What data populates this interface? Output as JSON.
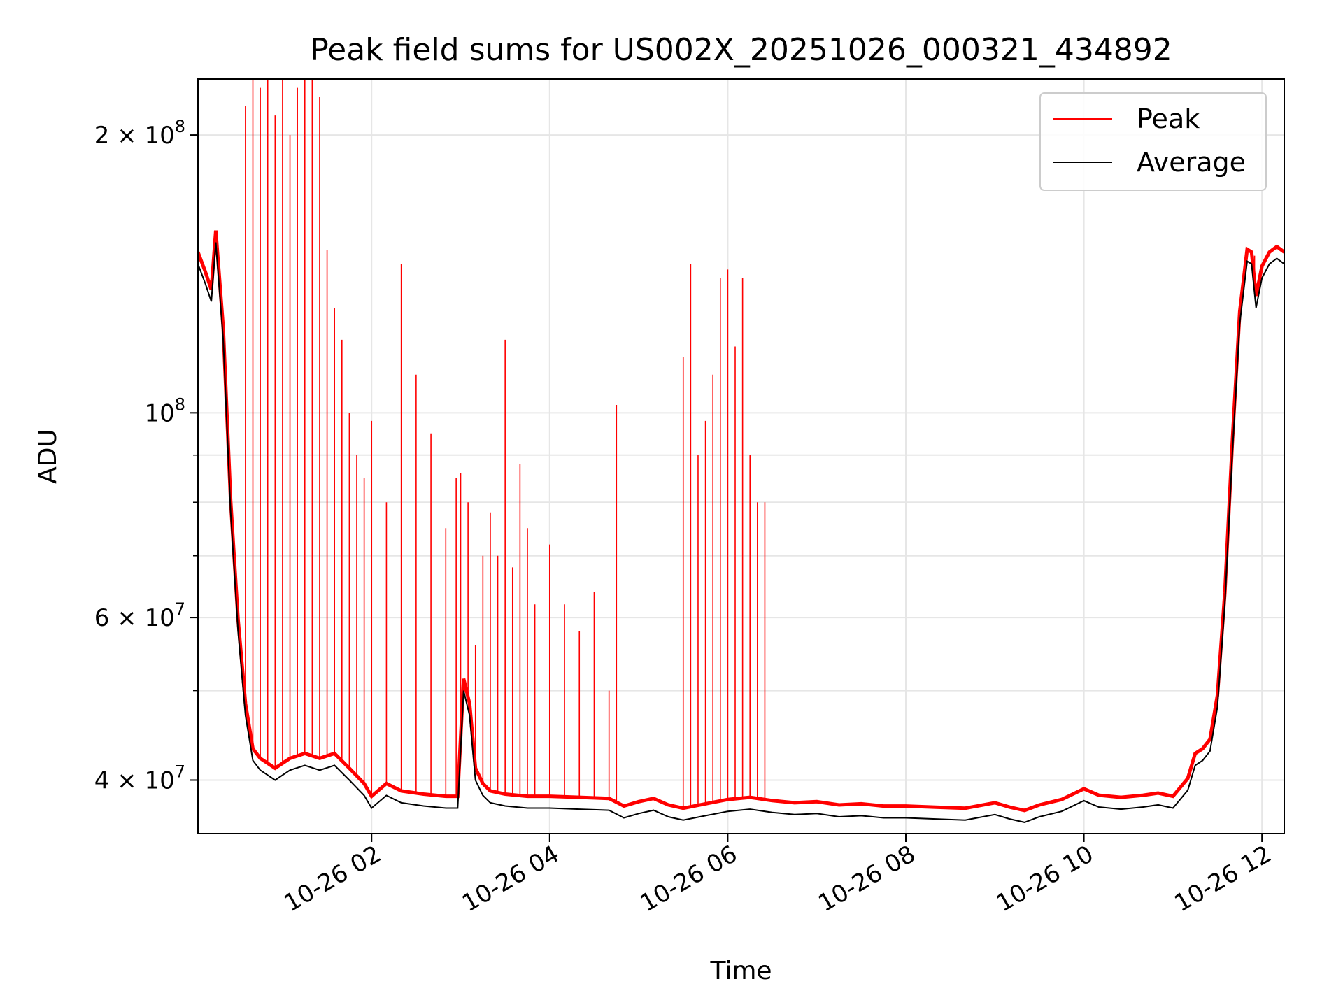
{
  "chart_data": {
    "type": "line",
    "title": "Peak field sums for US002X_20251026_000321_434892",
    "xlabel": "Time",
    "ylabel": "ADU",
    "yscale": "log",
    "xlim": [
      "2025-10-26 00:03",
      "2025-10-26 12:15"
    ],
    "ylim": [
      35000000,
      230000000
    ],
    "x_ticks": [
      {
        "value": "2025-10-26 02:00",
        "label": "10-26 02"
      },
      {
        "value": "2025-10-26 04:00",
        "label": "10-26 04"
      },
      {
        "value": "2025-10-26 06:00",
        "label": "10-26 06"
      },
      {
        "value": "2025-10-26 08:00",
        "label": "10-26 08"
      },
      {
        "value": "2025-10-26 10:00",
        "label": "10-26 10"
      },
      {
        "value": "2025-10-26 12:00",
        "label": "10-26 12"
      }
    ],
    "y_ticks": [
      {
        "value": 40000000,
        "base": "4 × 10",
        "exp": "7"
      },
      {
        "value": 60000000,
        "base": "6 × 10",
        "exp": "7"
      },
      {
        "value": 100000000,
        "base": "10",
        "exp": "8"
      },
      {
        "value": 200000000,
        "base": "2 × 10",
        "exp": "8"
      }
    ],
    "grid": true,
    "legend_position": "top-right",
    "series": [
      {
        "name": "Peak",
        "color": "#ff0000",
        "x": [
          "2025-10-26 00:03",
          "2025-10-26 00:10",
          "2025-10-26 00:15",
          "2025-10-26 00:20",
          "2025-10-26 00:25",
          "2025-10-26 00:30",
          "2025-10-26 00:35",
          "2025-10-26 00:40",
          "2025-10-26 00:45",
          "2025-10-26 00:50",
          "2025-10-26 00:55",
          "2025-10-26 01:00",
          "2025-10-26 01:05",
          "2025-10-26 01:10",
          "2025-10-26 01:15",
          "2025-10-26 01:20",
          "2025-10-26 01:25",
          "2025-10-26 01:30",
          "2025-10-26 01:35",
          "2025-10-26 01:40",
          "2025-10-26 01:45",
          "2025-10-26 01:50",
          "2025-10-26 01:55",
          "2025-10-26 02:00",
          "2025-10-26 02:10",
          "2025-10-26 02:20",
          "2025-10-26 02:30",
          "2025-10-26 02:40",
          "2025-10-26 02:50",
          "2025-10-26 02:57",
          "2025-10-26 03:00",
          "2025-10-26 03:05",
          "2025-10-26 03:10",
          "2025-10-26 03:15",
          "2025-10-26 03:20",
          "2025-10-26 03:25",
          "2025-10-26 03:30",
          "2025-10-26 03:35",
          "2025-10-26 03:40",
          "2025-10-26 03:45",
          "2025-10-26 03:50",
          "2025-10-26 04:00",
          "2025-10-26 04:10",
          "2025-10-26 04:20",
          "2025-10-26 04:30",
          "2025-10-26 04:40",
          "2025-10-26 04:45",
          "2025-10-26 04:50",
          "2025-10-26 05:00",
          "2025-10-26 05:10",
          "2025-10-26 05:20",
          "2025-10-26 05:30",
          "2025-10-26 05:35",
          "2025-10-26 05:40",
          "2025-10-26 05:45",
          "2025-10-26 05:50",
          "2025-10-26 05:55",
          "2025-10-26 06:00",
          "2025-10-26 06:05",
          "2025-10-26 06:10",
          "2025-10-26 06:15",
          "2025-10-26 06:20",
          "2025-10-26 06:25",
          "2025-10-26 06:30",
          "2025-10-26 06:40",
          "2025-10-26 07:00",
          "2025-10-26 07:20",
          "2025-10-26 07:40",
          "2025-10-26 08:00",
          "2025-10-26 08:20",
          "2025-10-26 08:40",
          "2025-10-26 09:00",
          "2025-10-26 09:10",
          "2025-10-26 09:20",
          "2025-10-26 09:40",
          "2025-10-26 10:00",
          "2025-10-26 10:10",
          "2025-10-26 10:20",
          "2025-10-26 10:40",
          "2025-10-26 10:50",
          "2025-10-26 11:00",
          "2025-10-26 11:10",
          "2025-10-26 11:20",
          "2025-10-26 11:30",
          "2025-10-26 11:35",
          "2025-10-26 11:40",
          "2025-10-26 11:45",
          "2025-10-26 11:50",
          "2025-10-26 11:55",
          "2025-10-26 12:00",
          "2025-10-26 12:05",
          "2025-10-26 12:10",
          "2025-10-26 12:15"
        ],
        "values": [
          145000000,
          140000000,
          158000000,
          120000000,
          82000000,
          60000000,
          215000000,
          230000000,
          225000000,
          230000000,
          210000000,
          230000000,
          200000000,
          225000000,
          230000000,
          230000000,
          220000000,
          150000000,
          130000000,
          120000000,
          100000000,
          90000000,
          85000000,
          98000000,
          80000000,
          145000000,
          110000000,
          95000000,
          75000000,
          85000000,
          86000000,
          80000000,
          56000000,
          70000000,
          78000000,
          70000000,
          120000000,
          68000000,
          88000000,
          75000000,
          62000000,
          72000000,
          62000000,
          58000000,
          64000000,
          50000000,
          102000000,
          38000000,
          37500000,
          37000000,
          36500000,
          115000000,
          145000000,
          90000000,
          98000000,
          110000000,
          140000000,
          143000000,
          118000000,
          140000000,
          90000000,
          80000000,
          80000000,
          38500000,
          38000000,
          37500000,
          37800000,
          37200000,
          37000000,
          36800000,
          37000000,
          37500000,
          36500000,
          37200000,
          38200000,
          39000000,
          38500000,
          38200000,
          38300000,
          38500000,
          38000000,
          41000000,
          44000000,
          45000000,
          52000000,
          70000000,
          95000000,
          130000000,
          148000000,
          136000000,
          140000000,
          148000000,
          146000000
        ]
      },
      {
        "name": "Average",
        "color": "#000000",
        "x": [
          "2025-10-26 00:03",
          "2025-10-26 00:08",
          "2025-10-26 00:12",
          "2025-10-26 00:15",
          "2025-10-26 00:20",
          "2025-10-26 00:25",
          "2025-10-26 00:30",
          "2025-10-26 00:35",
          "2025-10-26 00:40",
          "2025-10-26 00:45",
          "2025-10-26 00:55",
          "2025-10-26 01:05",
          "2025-10-26 01:15",
          "2025-10-26 01:25",
          "2025-10-26 01:35",
          "2025-10-26 01:45",
          "2025-10-26 01:55",
          "2025-10-26 02:00",
          "2025-10-26 02:10",
          "2025-10-26 02:20",
          "2025-10-26 02:35",
          "2025-10-26 02:50",
          "2025-10-26 02:58",
          "2025-10-26 03:02",
          "2025-10-26 03:06",
          "2025-10-26 03:10",
          "2025-10-26 03:15",
          "2025-10-26 03:20",
          "2025-10-26 03:30",
          "2025-10-26 03:45",
          "2025-10-26 04:00",
          "2025-10-26 04:20",
          "2025-10-26 04:40",
          "2025-10-26 04:50",
          "2025-10-26 05:00",
          "2025-10-26 05:10",
          "2025-10-26 05:20",
          "2025-10-26 05:30",
          "2025-10-26 05:45",
          "2025-10-26 06:00",
          "2025-10-26 06:15",
          "2025-10-26 06:30",
          "2025-10-26 06:45",
          "2025-10-26 07:00",
          "2025-10-26 07:15",
          "2025-10-26 07:30",
          "2025-10-26 07:45",
          "2025-10-26 08:00",
          "2025-10-26 08:20",
          "2025-10-26 08:40",
          "2025-10-26 09:00",
          "2025-10-26 09:10",
          "2025-10-26 09:20",
          "2025-10-26 09:30",
          "2025-10-26 09:45",
          "2025-10-26 10:00",
          "2025-10-26 10:10",
          "2025-10-26 10:25",
          "2025-10-26 10:40",
          "2025-10-26 10:50",
          "2025-10-26 11:00",
          "2025-10-26 11:10",
          "2025-10-26 11:15",
          "2025-10-26 11:20",
          "2025-10-26 11:25",
          "2025-10-26 11:30",
          "2025-10-26 11:35",
          "2025-10-26 11:40",
          "2025-10-26 11:45",
          "2025-10-26 11:50",
          "2025-10-26 11:53",
          "2025-10-26 11:56",
          "2025-10-26 12:00",
          "2025-10-26 12:05",
          "2025-10-26 12:10",
          "2025-10-26 12:15"
        ],
        "values": [
          145000000,
          138000000,
          132000000,
          153000000,
          120000000,
          78000000,
          58000000,
          47000000,
          42000000,
          41000000,
          40000000,
          41000000,
          41500000,
          41000000,
          41500000,
          40000000,
          38500000,
          37300000,
          38500000,
          37800000,
          37500000,
          37300000,
          37300000,
          50000000,
          47000000,
          40000000,
          38500000,
          37800000,
          37500000,
          37300000,
          37300000,
          37200000,
          37100000,
          36400000,
          36800000,
          37100000,
          36500000,
          36200000,
          36600000,
          37000000,
          37200000,
          36900000,
          36700000,
          36800000,
          36500000,
          36600000,
          36400000,
          36400000,
          36300000,
          36200000,
          36700000,
          36300000,
          36000000,
          36500000,
          37000000,
          38000000,
          37400000,
          37200000,
          37400000,
          37600000,
          37300000,
          39000000,
          41500000,
          42000000,
          43000000,
          48000000,
          62000000,
          90000000,
          125000000,
          146000000,
          145000000,
          130000000,
          140000000,
          145000000,
          147000000,
          145000000
        ]
      }
    ]
  }
}
